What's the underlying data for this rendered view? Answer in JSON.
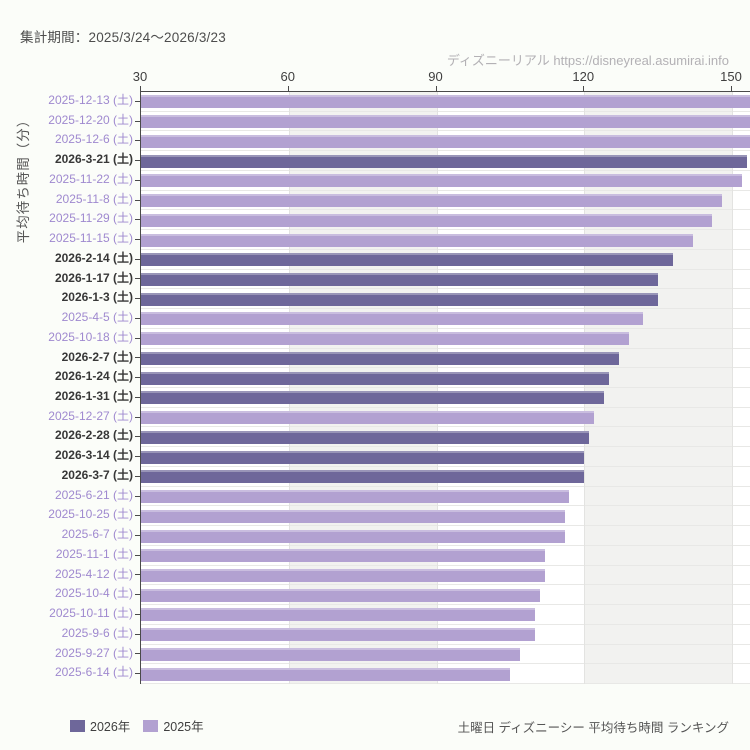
{
  "header": {
    "period_label": "集計期間：2025/3/24～2026/3/23",
    "watermark": "ディズニーリアル https://disneyreal.asumirai.info"
  },
  "footer": {
    "caption": "土曜日 ディズニーシー 平均待ち時間 ランキング"
  },
  "legend": {
    "items": [
      {
        "label": "2026年",
        "color": "#6e679a"
      },
      {
        "label": "2025年",
        "color": "#b2a1d1"
      }
    ]
  },
  "chart_data": {
    "type": "bar",
    "orientation": "horizontal",
    "title": "土曜日 ディズニーシー 平均待ち時間 ランキング",
    "ylabel": "平均待ち時間（分）",
    "xlabel": "",
    "x_ticks": [
      30,
      60,
      90,
      120,
      150
    ],
    "xlim": [
      30,
      154
    ],
    "grid": true,
    "shaded_bands": [
      [
        60,
        90
      ],
      [
        120,
        150
      ]
    ],
    "legend_position": "bottom-left",
    "series_colors": {
      "2026": "#6e679a",
      "2025": "#b2a1d1"
    },
    "label_colors": {
      "2026": "#373737",
      "2025": "#9f89cf"
    },
    "rows": [
      {
        "label": "2025-12-13 (土)",
        "year": "2025",
        "value": 157
      },
      {
        "label": "2025-12-20 (土)",
        "year": "2025",
        "value": 156
      },
      {
        "label": "2025-12-6 (土)",
        "year": "2025",
        "value": 155
      },
      {
        "label": "2026-3-21 (土)",
        "year": "2026",
        "value": 153
      },
      {
        "label": "2025-11-22 (土)",
        "year": "2025",
        "value": 152
      },
      {
        "label": "2025-11-8 (土)",
        "year": "2025",
        "value": 148
      },
      {
        "label": "2025-11-29 (土)",
        "year": "2025",
        "value": 146
      },
      {
        "label": "2025-11-15 (土)",
        "year": "2025",
        "value": 142
      },
      {
        "label": "2026-2-14 (土)",
        "year": "2026",
        "value": 138
      },
      {
        "label": "2026-1-17 (土)",
        "year": "2026",
        "value": 135
      },
      {
        "label": "2026-1-3 (土)",
        "year": "2026",
        "value": 135
      },
      {
        "label": "2025-4-5 (土)",
        "year": "2025",
        "value": 132
      },
      {
        "label": "2025-10-18 (土)",
        "year": "2025",
        "value": 129
      },
      {
        "label": "2026-2-7 (土)",
        "year": "2026",
        "value": 127
      },
      {
        "label": "2026-1-24 (土)",
        "year": "2026",
        "value": 125
      },
      {
        "label": "2026-1-31 (土)",
        "year": "2026",
        "value": 124
      },
      {
        "label": "2025-12-27 (土)",
        "year": "2025",
        "value": 122
      },
      {
        "label": "2026-2-28 (土)",
        "year": "2026",
        "value": 121
      },
      {
        "label": "2026-3-14 (土)",
        "year": "2026",
        "value": 120
      },
      {
        "label": "2026-3-7 (土)",
        "year": "2026",
        "value": 120
      },
      {
        "label": "2025-6-21 (土)",
        "year": "2025",
        "value": 117
      },
      {
        "label": "2025-10-25 (土)",
        "year": "2025",
        "value": 116
      },
      {
        "label": "2025-6-7 (土)",
        "year": "2025",
        "value": 116
      },
      {
        "label": "2025-11-1 (土)",
        "year": "2025",
        "value": 112
      },
      {
        "label": "2025-4-12 (土)",
        "year": "2025",
        "value": 112
      },
      {
        "label": "2025-10-4 (土)",
        "year": "2025",
        "value": 111
      },
      {
        "label": "2025-10-11 (土)",
        "year": "2025",
        "value": 110
      },
      {
        "label": "2025-9-6 (土)",
        "year": "2025",
        "value": 110
      },
      {
        "label": "2025-9-27 (土)",
        "year": "2025",
        "value": 107
      },
      {
        "label": "2025-6-14 (土)",
        "year": "2025",
        "value": 105
      }
    ]
  }
}
